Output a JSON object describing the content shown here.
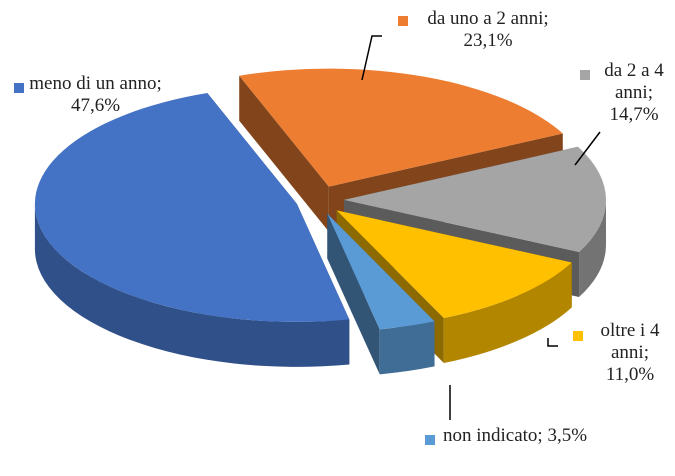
{
  "chart_data": {
    "type": "pie",
    "value_labels": [
      "da uno a 2 anni; 23,1%",
      "da 2 a 4 anni; 14,7%",
      "oltre i 4 anni; 11,0%",
      "non indicato; 3,5%",
      "meno di un anno; 47,6%"
    ],
    "values": [
      23.1,
      14.7,
      11.0,
      3.5,
      47.6
    ],
    "colors": [
      "#ed7d31",
      "#a5a5a5",
      "#ffc000",
      "#5b9bd5",
      "#4472c4"
    ],
    "exploded": true,
    "three_d": true
  }
}
